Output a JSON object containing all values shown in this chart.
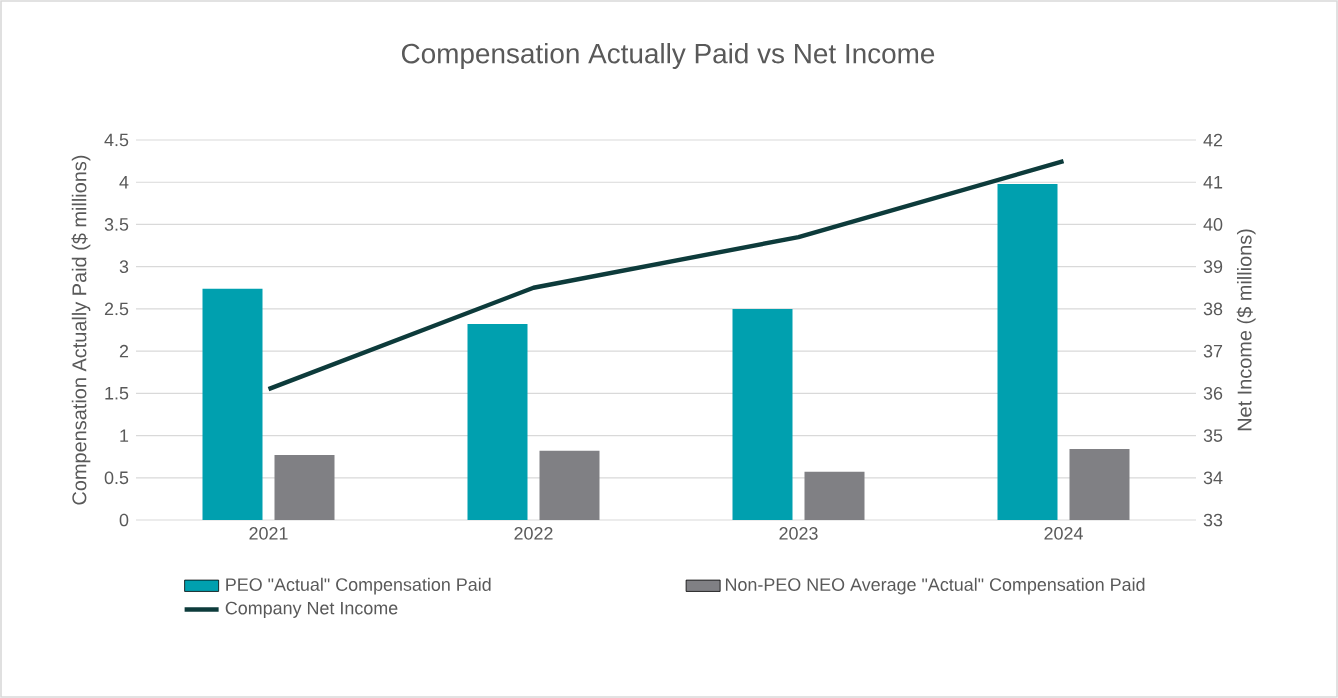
{
  "chart_data": {
    "type": "bar",
    "title": "Compensation Actually Paid vs Net Income",
    "categories": [
      "2021",
      "2022",
      "2023",
      "2024"
    ],
    "series": [
      {
        "name": "PEO \"Actual\" Compensation Paid",
        "color": "#00a0af",
        "values": [
          2.74,
          2.32,
          2.5,
          3.98
        ]
      },
      {
        "name": "Non-PEO NEO Average \"Actual\" Compensation Paid",
        "color": "#808084",
        "values": [
          0.77,
          0.82,
          0.57,
          0.84
        ]
      },
      {
        "name": "Company Net Income",
        "type": "line",
        "axis": "y2",
        "color": "#0d3b3b",
        "values": [
          36.1,
          38.5,
          39.7,
          41.5
        ]
      }
    ],
    "ylabel": "Compensation Actually Paid ($ millions)",
    "y2label": "Net Income ($ millions)",
    "ylim": [
      0,
      4.5
    ],
    "yticks": [
      0,
      0.5,
      1,
      1.5,
      2,
      2.5,
      3,
      3.5,
      4,
      4.5
    ],
    "y2lim": [
      33,
      42
    ],
    "y2ticks": [
      33,
      34,
      35,
      36,
      37,
      38,
      39,
      40,
      41,
      42
    ],
    "grid": "y",
    "legend": "bottom"
  }
}
